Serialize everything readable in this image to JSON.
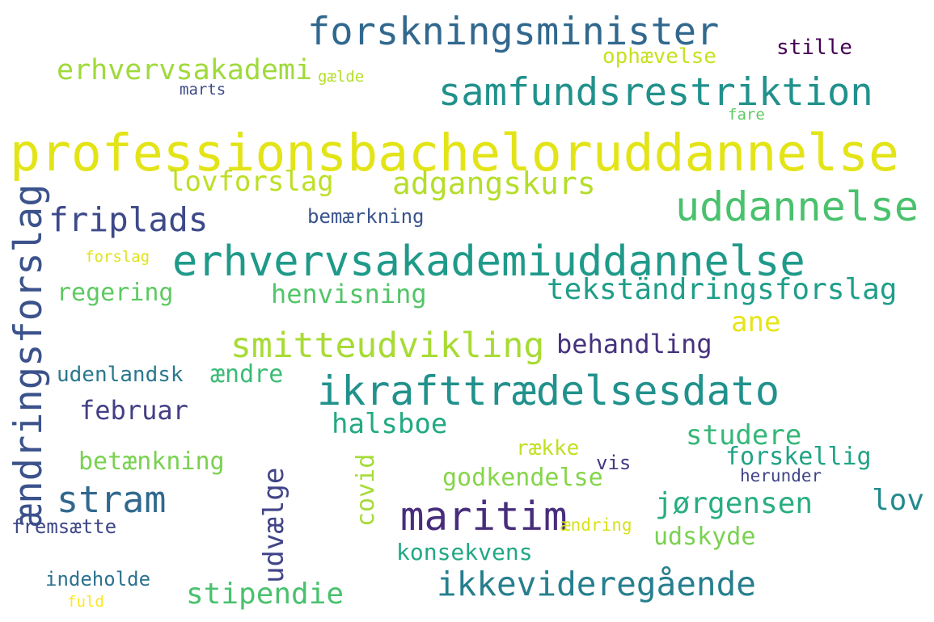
{
  "words": [
    {
      "text": "professionsbacheloruddannelse",
      "color": "#e3e418"
    },
    {
      "text": "forskningsminister",
      "color": "#31688e"
    },
    {
      "text": "samfundsrestriktion",
      "color": "#21918c"
    },
    {
      "text": "erhvervsakademi",
      "color": "#9fda3a"
    },
    {
      "text": "gælde",
      "color": "#b5de2b"
    },
    {
      "text": "marts",
      "color": "#3e4a89"
    },
    {
      "text": "ophævelse",
      "color": "#c8e020"
    },
    {
      "text": "stille",
      "color": "#440154"
    },
    {
      "text": "fare",
      "color": "#5ec962"
    },
    {
      "text": "lovforslag",
      "color": "#bddf26"
    },
    {
      "text": "adgangskurs",
      "color": "#b5de2b"
    },
    {
      "text": "uddannelse",
      "color": "#4ac16d"
    },
    {
      "text": "ændringsforslag",
      "color": "#3b528b"
    },
    {
      "text": "friplads",
      "color": "#3e4989"
    },
    {
      "text": "bemærkning",
      "color": "#3a548c"
    },
    {
      "text": "erhvervsakademiuddannelse",
      "color": "#1f9a8a"
    },
    {
      "text": "forslag",
      "color": "#e0e318"
    },
    {
      "text": "regering",
      "color": "#5ec962"
    },
    {
      "text": "henvisning",
      "color": "#52c569"
    },
    {
      "text": "tekständringsforslag",
      "color": "#1f9e89"
    },
    {
      "text": "ane",
      "color": "#e7e419"
    },
    {
      "text": "smitteudvikling",
      "color": "#a8db34"
    },
    {
      "text": "behandling",
      "color": "#46327e"
    },
    {
      "text": "udenlandsk",
      "color": "#2a788e"
    },
    {
      "text": "ændre",
      "color": "#3bbb75"
    },
    {
      "text": "ikrafttrædelsesdato",
      "color": "#21918c"
    },
    {
      "text": "februar",
      "color": "#433e85"
    },
    {
      "text": "halsboe",
      "color": "#23a983"
    },
    {
      "text": "studere",
      "color": "#35b779"
    },
    {
      "text": "betænkning",
      "color": "#7ad151"
    },
    {
      "text": "række",
      "color": "#c2df23"
    },
    {
      "text": "vis",
      "color": "#443983"
    },
    {
      "text": "forskellig",
      "color": "#20a386"
    },
    {
      "text": "herunder",
      "color": "#414487"
    },
    {
      "text": "godkendelse",
      "color": "#86d549"
    },
    {
      "text": "stram",
      "color": "#31688e"
    },
    {
      "text": "udvælge",
      "color": "#414487"
    },
    {
      "text": "covid",
      "color": "#a5db36"
    },
    {
      "text": "maritim",
      "color": "#472d7b"
    },
    {
      "text": "jørgensen",
      "color": "#28ae80"
    },
    {
      "text": "lov",
      "color": "#238a8d"
    },
    {
      "text": "ændring",
      "color": "#d8e219"
    },
    {
      "text": "udskyde",
      "color": "#7ad151"
    },
    {
      "text": "fremsætte",
      "color": "#3f4788"
    },
    {
      "text": "konsekvens",
      "color": "#22a884"
    },
    {
      "text": "ikkevideregående",
      "color": "#277f8e"
    },
    {
      "text": "indeholde",
      "color": "#2c728e"
    },
    {
      "text": "stipendie",
      "color": "#4ac16d"
    },
    {
      "text": "fuld",
      "color": "#fde725"
    }
  ]
}
